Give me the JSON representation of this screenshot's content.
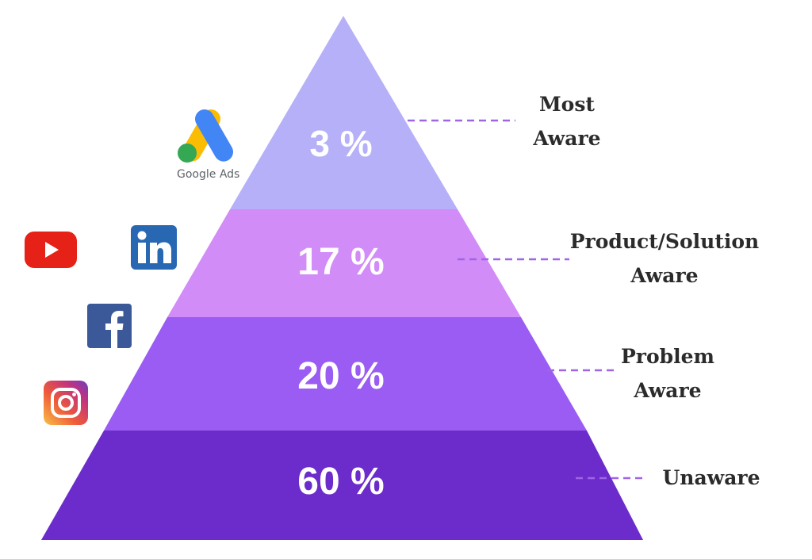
{
  "pyramid": {
    "tiers": [
      {
        "value": "3 %",
        "label_lines": [
          "Most",
          "Aware"
        ],
        "color": "#b6b0f8"
      },
      {
        "value": "17 %",
        "label_lines": [
          "Product/Solution",
          "Aware"
        ],
        "color": "#d18cf8"
      },
      {
        "value": "20 %",
        "label_lines": [
          "Problem",
          "Aware"
        ],
        "color": "#9a5cf2"
      },
      {
        "value": "60 %",
        "label_lines": [
          "Unaware"
        ],
        "color": "#6c2ccb"
      }
    ],
    "connector_color": "#a064e6"
  },
  "channels": {
    "google_ads_caption": "Google Ads",
    "icons": [
      "google-ads-icon",
      "youtube-icon",
      "linkedin-icon",
      "facebook-icon",
      "instagram-icon"
    ]
  }
}
